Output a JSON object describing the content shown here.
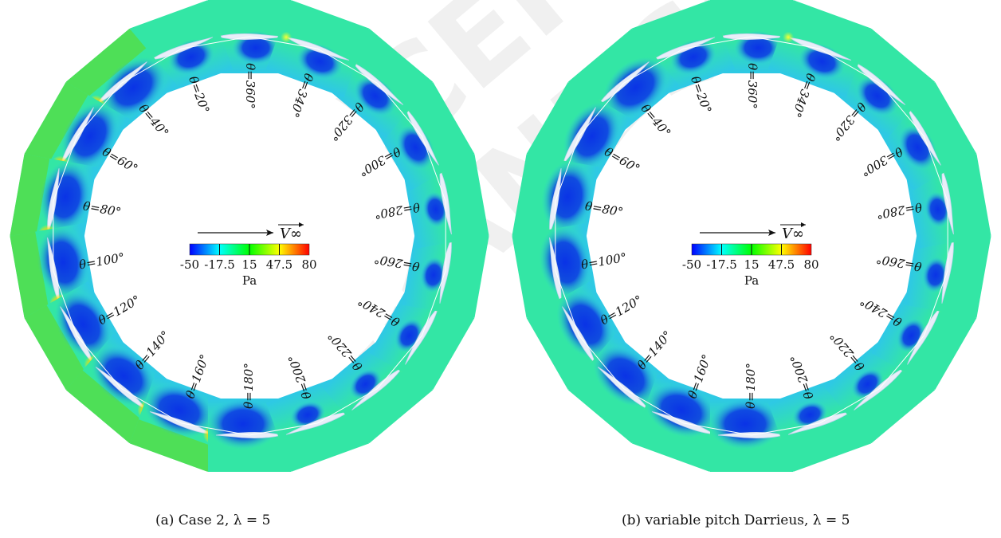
{
  "panels": [
    {
      "id": "a",
      "caption": "(a) Case 2, λ = 5",
      "angle_labels": [
        "θ=360°",
        "θ=20°",
        "θ=40°",
        "θ=60°",
        "θ=80°",
        "θ=100°",
        "θ=120°",
        "θ=140°",
        "θ=160°",
        "θ=180°",
        "θ=200°",
        "θ=220°",
        "θ=240°",
        "θ=260°",
        "θ=280°",
        "θ=300°",
        "θ=320°",
        "θ=340°"
      ],
      "free_stream_label": "V∞",
      "colorbar": {
        "ticks": [
          "-50",
          "-17.5",
          "15",
          "47.5",
          "80"
        ],
        "unit": "Pa"
      }
    },
    {
      "id": "b",
      "caption": "(b) variable pitch Darrieus, λ = 5",
      "angle_labels": [
        "θ=360°",
        "θ=20°",
        "θ=40°",
        "θ=60°",
        "θ=80°",
        "θ=100°",
        "θ=120°",
        "θ=140°",
        "θ=160°",
        "θ=180°",
        "θ=200°",
        "θ=220°",
        "θ=240°",
        "θ=260°",
        "θ=280°",
        "θ=300°",
        "θ=320°",
        "θ=340°"
      ],
      "free_stream_label": "V∞",
      "colorbar": {
        "ticks": [
          "-50",
          "-17.5",
          "15",
          "47.5",
          "80"
        ],
        "unit": "Pa"
      }
    }
  ],
  "colorbar_colors": [
    "#0000ff",
    "#00ffff",
    "#00ff00",
    "#ffff00",
    "#ff0000"
  ],
  "field_colors": {
    "base": "#33e6a5",
    "suction": "#0a33e6",
    "inner": "#2ec8e6",
    "outer_a": "#55dd44",
    "stagnation": "#ff2200"
  },
  "watermark": "ACCEPTED MANUSCRIPT"
}
